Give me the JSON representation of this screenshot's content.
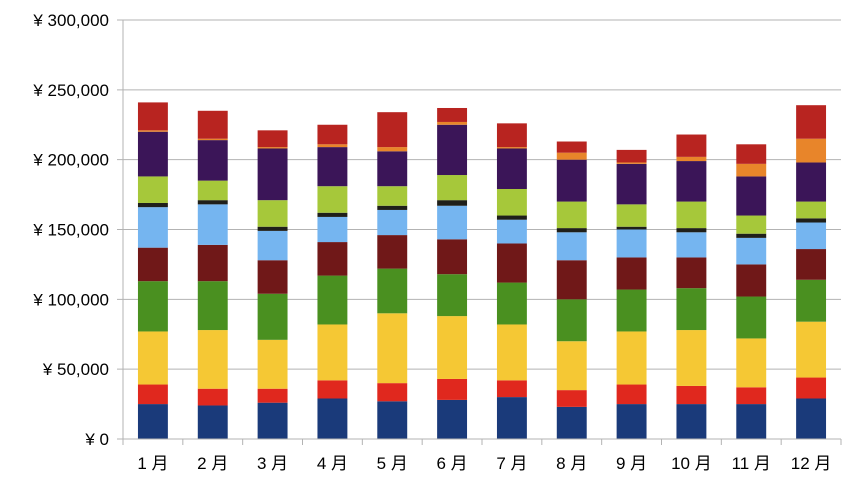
{
  "chart_data": {
    "type": "bar",
    "stacked": true,
    "grid": true,
    "legend": "none",
    "title": "",
    "xlabel": "",
    "ylabel": "",
    "ylim": [
      0,
      300000
    ],
    "yticks": [
      "¥ 0",
      "¥ 50,000",
      "¥ 100,000",
      "¥ 150,000",
      "¥ 200,000",
      "¥ 250,000",
      "¥ 300,000"
    ],
    "categories": [
      "1 月",
      "2 月",
      "3 月",
      "4 月",
      "5 月",
      "6 月",
      "7 月",
      "8 月",
      "9 月",
      "10 月",
      "11 月",
      "12 月"
    ],
    "series": [
      {
        "color": "#1a3a7a",
        "values": [
          25000,
          24000,
          26000,
          29000,
          27000,
          28000,
          30000,
          23000,
          25000,
          25000,
          25000,
          29000
        ]
      },
      {
        "color": "#e0281e",
        "values": [
          14000,
          12000,
          10000,
          13000,
          13000,
          15000,
          12000,
          12000,
          14000,
          13000,
          12000,
          15000
        ]
      },
      {
        "color": "#f5c834",
        "values": [
          38000,
          42000,
          35000,
          40000,
          50000,
          45000,
          40000,
          35000,
          38000,
          40000,
          35000,
          40000
        ]
      },
      {
        "color": "#4a9020",
        "values": [
          36000,
          35000,
          33000,
          35000,
          32000,
          30000,
          30000,
          30000,
          30000,
          30000,
          30000,
          30000
        ]
      },
      {
        "color": "#701818",
        "values": [
          24000,
          26000,
          24000,
          24000,
          24000,
          25000,
          28000,
          28000,
          23000,
          22000,
          23000,
          22000
        ]
      },
      {
        "color": "#75b5f0",
        "values": [
          29000,
          29000,
          21000,
          18000,
          18000,
          24000,
          17000,
          20000,
          20000,
          18000,
          19000,
          19000
        ]
      },
      {
        "color": "#1f1f1a",
        "values": [
          3000,
          3000,
          3000,
          3000,
          3000,
          4000,
          3000,
          3000,
          2000,
          3000,
          3000,
          3000
        ]
      },
      {
        "color": "#a6c83a",
        "values": [
          19000,
          14000,
          19000,
          19000,
          14000,
          18000,
          19000,
          19000,
          16000,
          19000,
          13000,
          12000
        ]
      },
      {
        "color": "#3b1558",
        "values": [
          32000,
          29000,
          37000,
          28000,
          25000,
          36000,
          29000,
          30000,
          29000,
          29000,
          28000,
          28000
        ]
      },
      {
        "color": "#e8852a",
        "values": [
          1000,
          1000,
          1000,
          2000,
          3000,
          2000,
          1000,
          5000,
          1000,
          3000,
          9000,
          17000
        ]
      },
      {
        "color": "#b82420",
        "values": [
          20000,
          20000,
          12000,
          14000,
          25000,
          10000,
          17000,
          8000,
          9000,
          16000,
          14000,
          24000
        ]
      }
    ]
  }
}
